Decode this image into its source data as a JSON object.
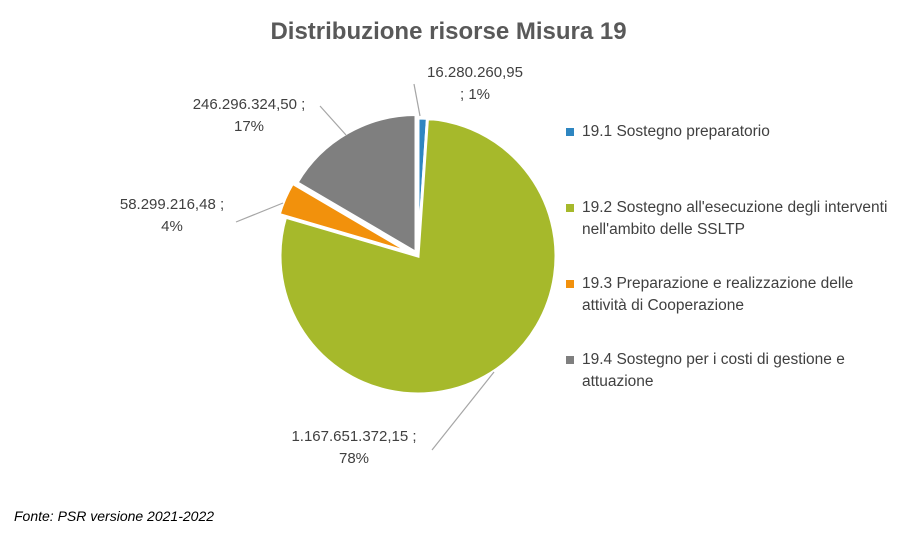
{
  "chart_data": {
    "type": "pie",
    "title": "Distribuzione risorse Misura 19",
    "slices": [
      {
        "name": "19.1 Sostegno preparatorio",
        "value": 16280260.95,
        "value_label": "16.280.260,95",
        "percent_label": "1%",
        "color": "#2e86c1"
      },
      {
        "name": "19.2 Sostegno all'esecuzione degli interventi nell'ambito delle SSLTP",
        "value": 1167651372.15,
        "value_label": "1.167.651.372,15",
        "percent_label": "78%",
        "color": "#a6b92b"
      },
      {
        "name": "19.3 Preparazione e realizzazione delle attività di Cooperazione",
        "value": 58299216.48,
        "value_label": "58.299.216,48",
        "percent_label": "4%",
        "color": "#f2910c"
      },
      {
        "name": "19.4 Sostegno per i costi di gestione e attuazione",
        "value": 246296324.5,
        "value_label": "246.296.324,50",
        "percent_label": "17%",
        "color": "#7f7f7f"
      }
    ],
    "legend_position": "right"
  },
  "source_note": "Fonte: PSR versione 2021-2022"
}
